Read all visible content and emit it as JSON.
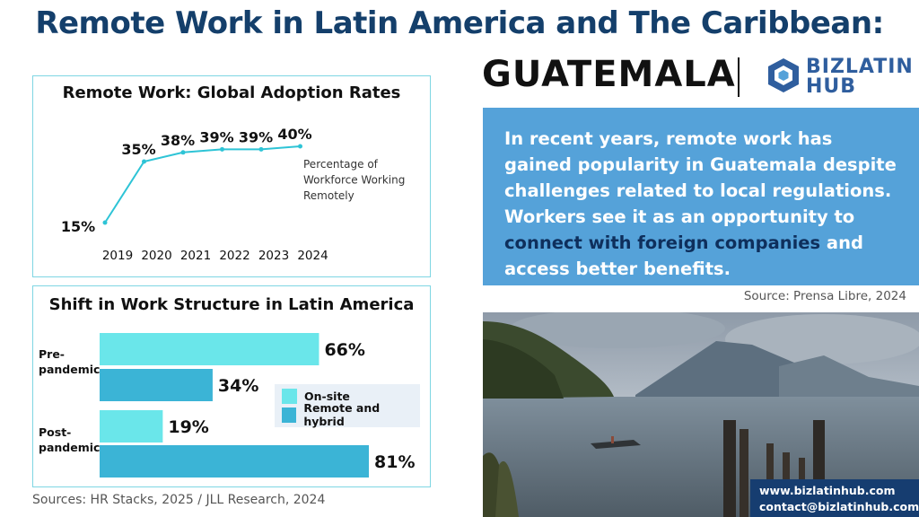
{
  "header": {
    "title": "Remote Work in Latin America and The Caribbean:",
    "country": "GUATEMALA",
    "logo_line1": "BIZLATIN",
    "logo_line2": "HUB"
  },
  "info": {
    "text_before": "In recent years, remote work has gained popularity in Guatemala despite challenges related to local regulations. Workers see it as an opportunity to ",
    "text_highlight": "connect with foreign companies",
    "text_after": " and access better benefits.",
    "source": "Source:  Prensa Libre, 2024"
  },
  "footer": {
    "sources": "Sources: HR Stacks, 2025 /  JLL Research, 2024",
    "website": "www.bizlatinhub.com",
    "email": "contact@bizlatinhub.com"
  },
  "colors": {
    "title": "#143f6b",
    "line": "#2ec4d6",
    "onsite": "#6ae6ea",
    "remote": "#3bb4d6",
    "info_bg": "#55a2d9",
    "highlight": "#0e2f5c"
  },
  "chart_data": [
    {
      "type": "line",
      "title": "Remote Work: Global Adoption Rates",
      "categories": [
        "2019",
        "2020",
        "2021",
        "2022",
        "2023",
        "2024"
      ],
      "values": [
        15,
        35,
        38,
        39,
        39,
        40
      ],
      "value_labels": [
        "15%",
        "35%",
        "38%",
        "39%",
        "39%",
        "40%"
      ],
      "annotation": "Percentage of Workforce Working Remotely",
      "annotation_lines": [
        "Percentage of",
        "Workforce Working",
        "Remotely"
      ],
      "ylim": [
        15,
        40
      ]
    },
    {
      "type": "bar",
      "orientation": "horizontal",
      "title": "Shift in Work Structure in Latin America",
      "groups": [
        {
          "label_lines": [
            "Pre-",
            "pandemic"
          ],
          "values": [
            66,
            34
          ],
          "labels": [
            "66%",
            "34%"
          ]
        },
        {
          "label_lines": [
            "Post-",
            "pandemic"
          ],
          "values": [
            19,
            81
          ],
          "labels": [
            "19%",
            "81%"
          ]
        }
      ],
      "series": [
        {
          "name": "On-site",
          "color": "#6ae6ea"
        },
        {
          "name": "Remote and hybrid",
          "color": "#3bb4d6"
        }
      ],
      "xlim": [
        0,
        81
      ]
    }
  ]
}
